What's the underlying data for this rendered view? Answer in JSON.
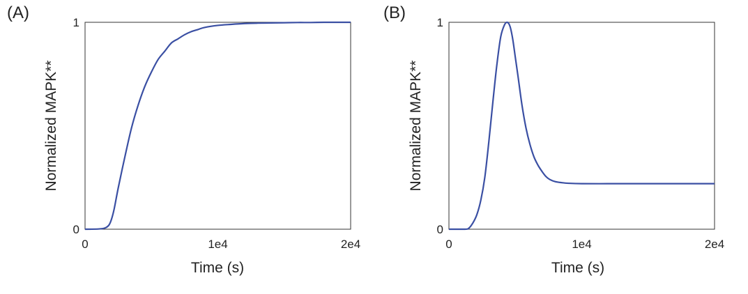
{
  "panels": [
    {
      "label": "(A)",
      "chart_data": {
        "type": "line",
        "title": "",
        "xlabel": "Time (s)",
        "ylabel": "Normalized MAPK**",
        "xlim": [
          0,
          20000
        ],
        "ylim": [
          0,
          1
        ],
        "xticks": [
          0,
          10000,
          20000
        ],
        "xtick_labels": [
          "0",
          "1e4",
          "2e4"
        ],
        "yticks": [
          0,
          1
        ],
        "ytick_labels": [
          "0",
          "1"
        ],
        "grid": false,
        "legend": "none",
        "line_color": "#3a4fa3",
        "series": [
          {
            "x": [
              0,
              1000,
              1500,
              1800,
              2000,
              2200,
              2500,
              3000,
              3500,
              4000,
              4500,
              5000,
              5500,
              6000,
              6500,
              7000,
              7500,
              8000,
              8500,
              9000,
              10000,
              11000,
              12000,
              13000,
              14000,
              15000,
              16000,
              17000,
              18000,
              19000,
              20000
            ],
            "y": [
              0,
              0.001,
              0.006,
              0.02,
              0.05,
              0.1,
              0.2,
              0.35,
              0.49,
              0.6,
              0.69,
              0.76,
              0.82,
              0.86,
              0.9,
              0.92,
              0.94,
              0.955,
              0.965,
              0.975,
              0.985,
              0.99,
              0.994,
              0.996,
              0.997,
              0.998,
              0.999,
              0.999,
              1.0,
              1.0,
              1.0
            ]
          }
        ]
      }
    },
    {
      "label": "(B)",
      "chart_data": {
        "type": "line",
        "title": "",
        "xlabel": "Time (s)",
        "ylabel": "Normalized MAPK**",
        "xlim": [
          0,
          20000
        ],
        "ylim": [
          0,
          1
        ],
        "xticks": [
          0,
          10000,
          20000
        ],
        "xtick_labels": [
          "0",
          "1e4",
          "2e4"
        ],
        "yticks": [
          0,
          1
        ],
        "ytick_labels": [
          "0",
          "1"
        ],
        "grid": false,
        "legend": "none",
        "line_color": "#3a4fa3",
        "series": [
          {
            "x": [
              0,
              1200,
              1500,
              1800,
              2100,
              2400,
              2700,
              3000,
              3300,
              3600,
              3900,
              4200,
              4400,
              4600,
              4800,
              5000,
              5200,
              5500,
              5800,
              6100,
              6400,
              6700,
              7000,
              7300,
              7600,
              8000,
              8500,
              9000,
              10000,
              12000,
              14000,
              16000,
              18000,
              20000
            ],
            "y": [
              0,
              0,
              0.005,
              0.03,
              0.07,
              0.14,
              0.25,
              0.42,
              0.61,
              0.79,
              0.93,
              0.99,
              1.0,
              0.98,
              0.92,
              0.83,
              0.74,
              0.6,
              0.49,
              0.41,
              0.35,
              0.31,
              0.28,
              0.255,
              0.24,
              0.23,
              0.225,
              0.222,
              0.22,
              0.22,
              0.22,
              0.22,
              0.22,
              0.22
            ]
          }
        ]
      }
    }
  ]
}
